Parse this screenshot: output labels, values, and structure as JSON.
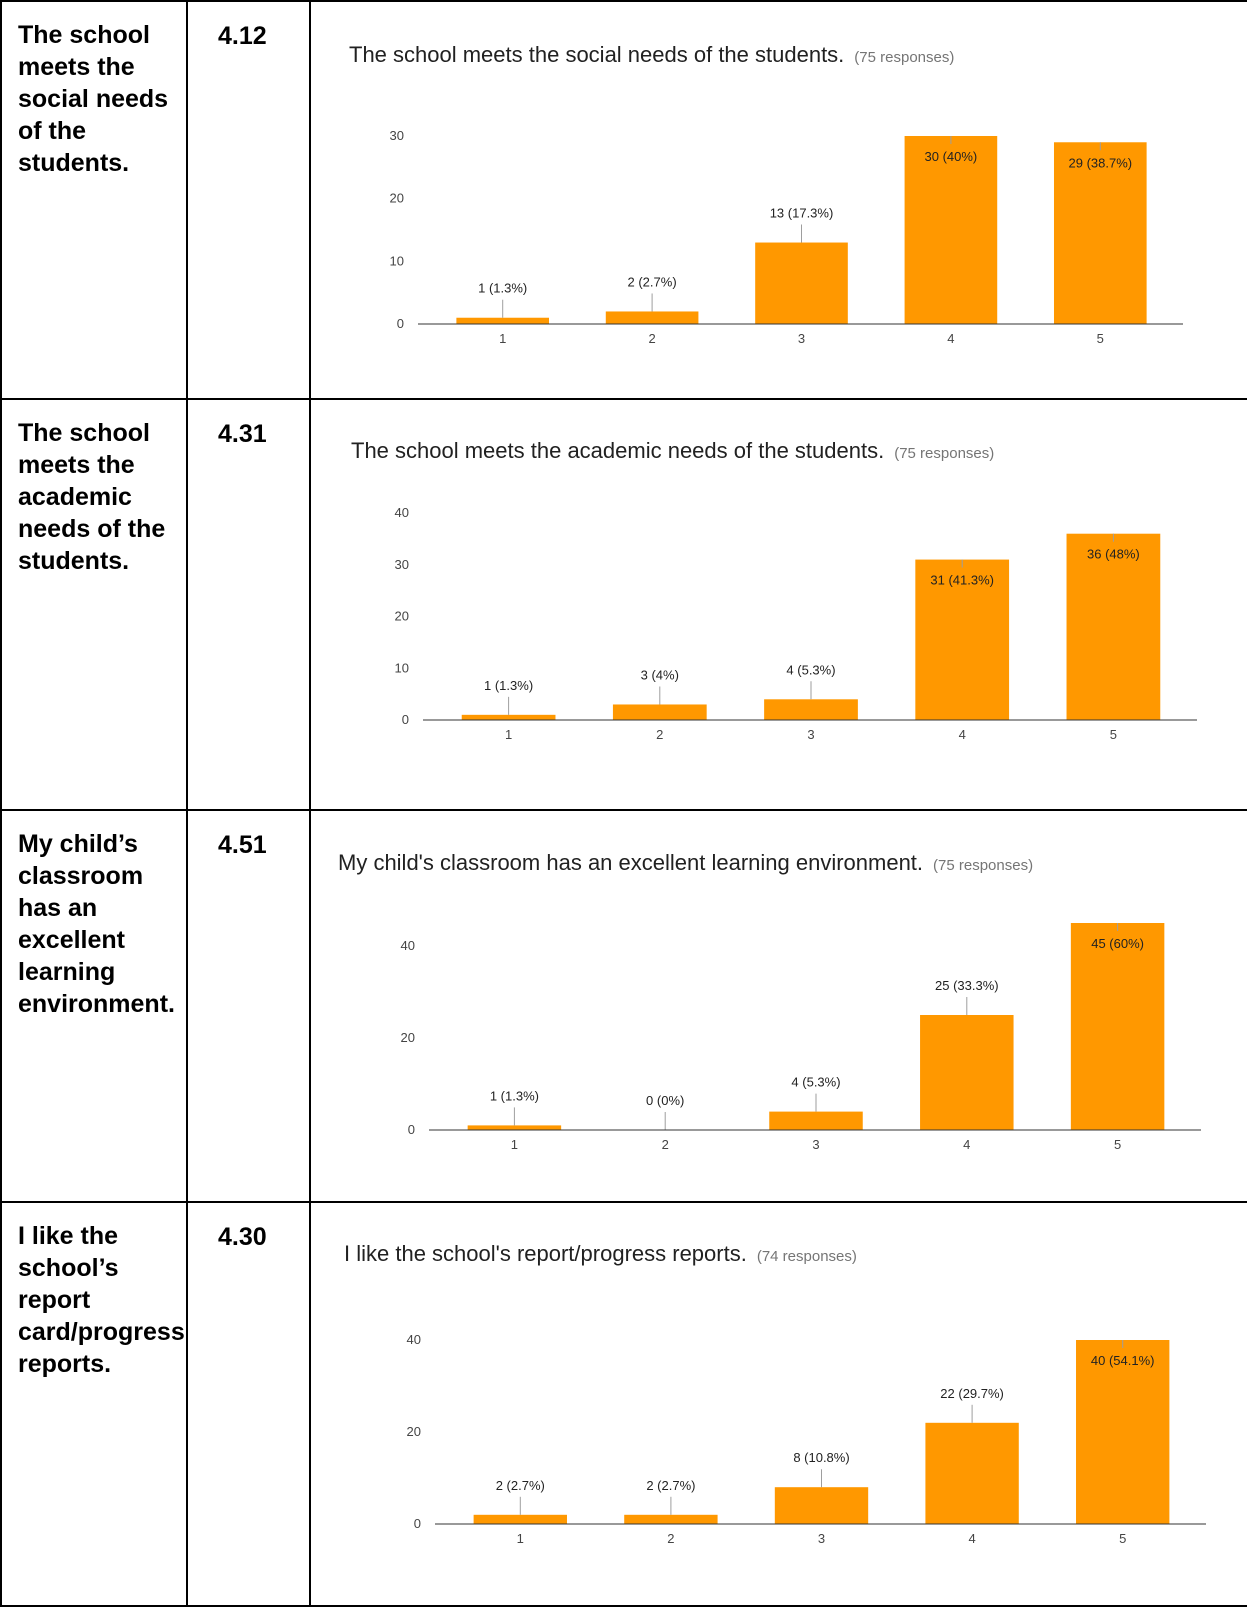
{
  "rows": [
    {
      "question": "The school meets the social needs of the students.",
      "score": "4.12",
      "chart_title": "The school meets the social needs of the students.",
      "chart_responses": "(75 responses)"
    },
    {
      "question": "The school meets the academic needs of the students.",
      "score": "4.31",
      "chart_title": "The school meets the academic needs of the students.",
      "chart_responses": "(75 responses)"
    },
    {
      "question": "My child’s classroom has an excellent learning environment.",
      "score": "4.51",
      "chart_title": "My child's classroom has an excellent learning environment.",
      "chart_responses": "(75 responses)"
    },
    {
      "question": "I like the school’s report card/progress reports.",
      "score": "4.30",
      "chart_title": "I like the school's report/progress reports.",
      "chart_responses": "(74 responses)"
    }
  ],
  "bar_color": "#ff9800",
  "chart_data": [
    {
      "type": "bar",
      "title": "The school meets the social needs of the students.",
      "categories": [
        "1",
        "2",
        "3",
        "4",
        "5"
      ],
      "values": [
        1,
        2,
        13,
        30,
        29
      ],
      "labels": [
        "1 (1.3%)",
        "2 (2.7%)",
        "13 (17.3%)",
        "30 (40%)",
        "29 (38.7%)"
      ],
      "yticks": [
        0,
        10,
        20,
        30
      ],
      "ylim": [
        0,
        30
      ],
      "grid": false,
      "legend": "none"
    },
    {
      "type": "bar",
      "title": "The school meets the academic needs of the students.",
      "categories": [
        "1",
        "2",
        "3",
        "4",
        "5"
      ],
      "values": [
        1,
        3,
        4,
        31,
        36
      ],
      "labels": [
        "1 (1.3%)",
        "3 (4%)",
        "4 (5.3%)",
        "31 (41.3%)",
        "36 (48%)"
      ],
      "yticks": [
        0,
        10,
        20,
        30,
        40
      ],
      "ylim": [
        0,
        40
      ],
      "grid": false,
      "legend": "none"
    },
    {
      "type": "bar",
      "title": "My child's classroom has an excellent learning environment.",
      "categories": [
        "1",
        "2",
        "3",
        "4",
        "5"
      ],
      "values": [
        1,
        0,
        4,
        25,
        45
      ],
      "labels": [
        "1 (1.3%)",
        "0 (0%)",
        "4 (5.3%)",
        "25 (33.3%)",
        "45 (60%)"
      ],
      "yticks": [
        0,
        20,
        40
      ],
      "ylim": [
        0,
        45
      ],
      "grid": false,
      "legend": "none"
    },
    {
      "type": "bar",
      "title": "I like the school's report/progress reports.",
      "categories": [
        "1",
        "2",
        "3",
        "4",
        "5"
      ],
      "values": [
        2,
        2,
        8,
        22,
        40
      ],
      "labels": [
        "2 (2.7%)",
        "2 (2.7%)",
        "8 (10.8%)",
        "22 (29.7%)",
        "40 (54.1%)"
      ],
      "yticks": [
        0,
        20,
        40
      ],
      "ylim": [
        0,
        40
      ],
      "grid": false,
      "legend": "none"
    }
  ]
}
